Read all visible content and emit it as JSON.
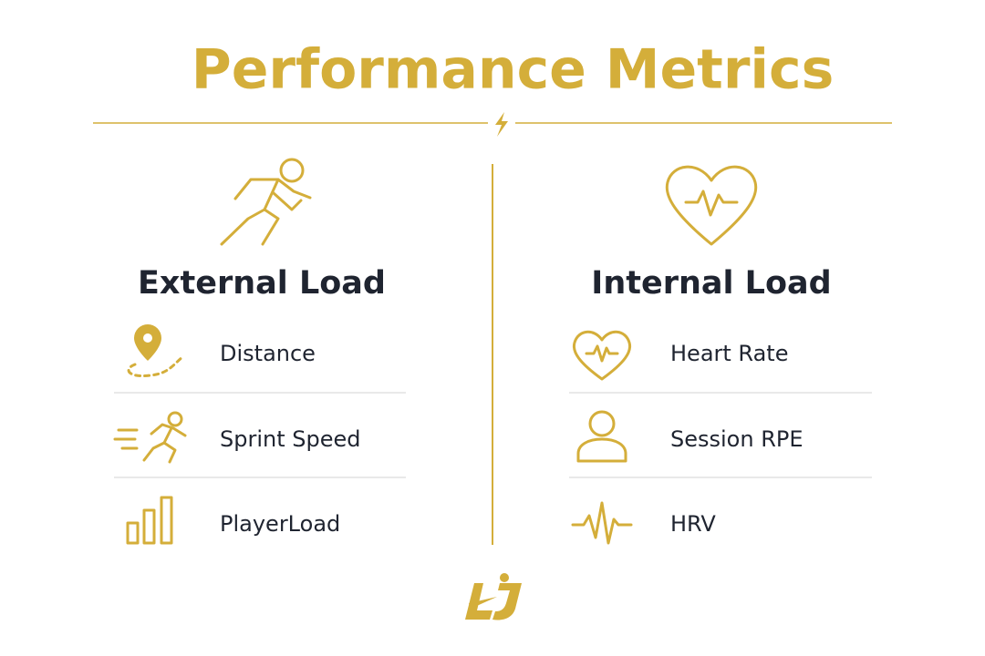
{
  "title": "Performance Metrics",
  "columns": [
    {
      "heading": "External Load",
      "items": [
        "Distance",
        "Sprint Speed",
        "PlayerLoad"
      ]
    },
    {
      "heading": "Internal Load",
      "items": [
        "Heart Rate",
        "Session RPE",
        "HRV"
      ]
    }
  ]
}
